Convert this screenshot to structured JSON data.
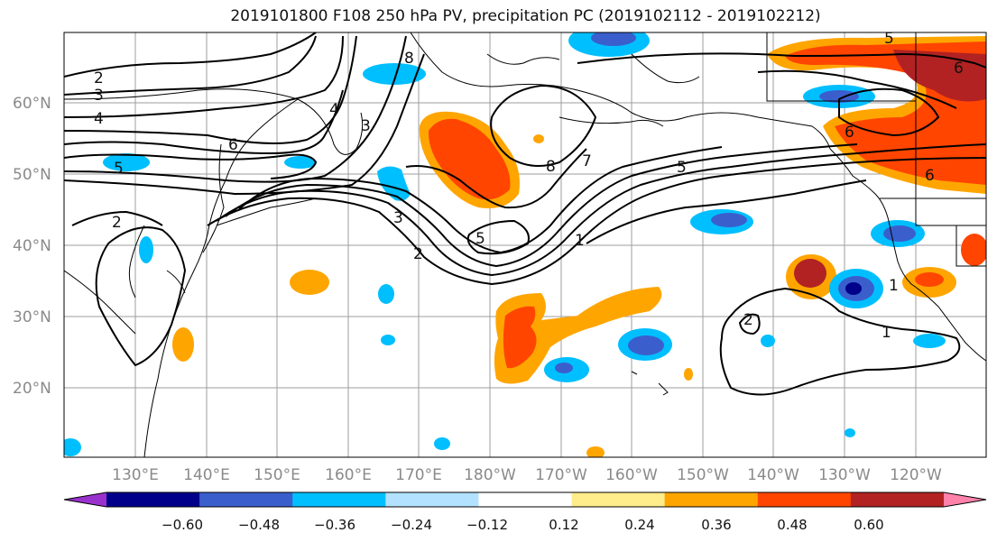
{
  "title": "2019101800 F108 250 hPa PV, precipitation PC (2019102112 - 2019102212)",
  "map": {
    "lat_labels": [
      "60°N",
      "50°N",
      "40°N",
      "30°N",
      "20°N"
    ],
    "lon_labels": [
      "130°E",
      "140°E",
      "150°E",
      "160°E",
      "170°E",
      "180°W",
      "170°W",
      "160°W",
      "150°W",
      "140°W",
      "130°W",
      "120°W"
    ],
    "contour_labels": [
      "2",
      "3",
      "4",
      "6",
      "5",
      "8",
      "2",
      "3",
      "4",
      "6",
      "5",
      "8",
      "7",
      "5",
      "1",
      "3",
      "2",
      "5",
      "1",
      "2",
      "1",
      "6",
      "6"
    ]
  },
  "colorbar": {
    "colors": [
      "#9932cc",
      "#00008b",
      "#3a5fcd",
      "#00bfff",
      "#b2e2ff",
      "#ffffff",
      "#ffec8b",
      "#ffa500",
      "#ff4500",
      "#b22222",
      "#ff82ab"
    ],
    "tick_labels": [
      "−0.60",
      "−0.48",
      "−0.36",
      "−0.24",
      "−0.12",
      "0.12",
      "0.24",
      "0.36",
      "0.48",
      "0.60"
    ]
  }
}
